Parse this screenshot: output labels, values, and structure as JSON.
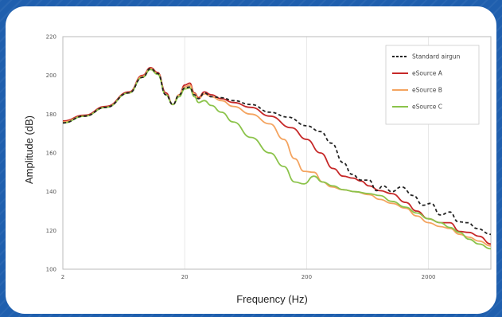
{
  "chart_data": {
    "type": "line",
    "title": "",
    "xlabel": "Frequency (Hz)",
    "ylabel": "Amplitude (dB)",
    "x_scale": "log",
    "xlim": [
      2,
      6500
    ],
    "ylim": [
      100,
      220
    ],
    "x_ticks": [
      2,
      20,
      200,
      2000
    ],
    "x_tick_labels": [
      "2",
      "20",
      "200",
      "2000"
    ],
    "y_ticks": [
      100,
      120,
      140,
      160,
      180,
      200,
      220
    ],
    "y_tick_labels": [
      "100",
      "120",
      "140",
      "160",
      "180",
      "200",
      "220"
    ],
    "grid": "vertical",
    "legend_position": "top-right",
    "series": [
      {
        "name": "Standard airgun",
        "color": "#222222",
        "dash": "4,3",
        "points": [
          [
            2,
            175.5
          ],
          [
            3,
            179
          ],
          [
            4.5,
            183.5
          ],
          [
            7,
            191
          ],
          [
            9,
            199
          ],
          [
            10.5,
            203.5
          ],
          [
            12,
            201
          ],
          [
            14,
            190
          ],
          [
            16,
            185
          ],
          [
            18,
            190
          ],
          [
            20,
            193.5
          ],
          [
            22,
            194
          ],
          [
            24,
            190
          ],
          [
            26,
            188
          ],
          [
            29,
            191
          ],
          [
            33,
            189
          ],
          [
            40,
            188.5
          ],
          [
            50,
            187
          ],
          [
            70,
            185
          ],
          [
            100,
            181
          ],
          [
            140,
            178.5
          ],
          [
            200,
            174
          ],
          [
            260,
            171
          ],
          [
            320,
            165
          ],
          [
            400,
            155
          ],
          [
            470,
            149
          ],
          [
            560,
            146
          ],
          [
            650,
            146
          ],
          [
            750,
            140.5
          ],
          [
            850,
            143
          ],
          [
            1000,
            140
          ],
          [
            1200,
            142.5
          ],
          [
            1500,
            138
          ],
          [
            1800,
            133
          ],
          [
            2100,
            134
          ],
          [
            2500,
            128
          ],
          [
            3000,
            129.5
          ],
          [
            3500,
            124.5
          ],
          [
            4200,
            124
          ],
          [
            5000,
            121
          ],
          [
            6500,
            118
          ]
        ]
      },
      {
        "name": "eSource A",
        "color": "#c62828",
        "dash": "",
        "points": [
          [
            2,
            176.5
          ],
          [
            3,
            179.5
          ],
          [
            4.5,
            184
          ],
          [
            7,
            191.5
          ],
          [
            9,
            200
          ],
          [
            10.5,
            204
          ],
          [
            12,
            201.5
          ],
          [
            14,
            191
          ],
          [
            16,
            185
          ],
          [
            18,
            190
          ],
          [
            20,
            195
          ],
          [
            22,
            196
          ],
          [
            24,
            191
          ],
          [
            26,
            188.5
          ],
          [
            29,
            191.5
          ],
          [
            33,
            190
          ],
          [
            40,
            188
          ],
          [
            50,
            186
          ],
          [
            70,
            183.5
          ],
          [
            100,
            179
          ],
          [
            150,
            173
          ],
          [
            200,
            167
          ],
          [
            260,
            160
          ],
          [
            330,
            152
          ],
          [
            400,
            148
          ],
          [
            480,
            147
          ],
          [
            560,
            145.5
          ],
          [
            650,
            143
          ],
          [
            800,
            140.5
          ],
          [
            1000,
            139
          ],
          [
            1300,
            134.5
          ],
          [
            1600,
            130
          ],
          [
            2000,
            126
          ],
          [
            2500,
            124
          ],
          [
            3000,
            124
          ],
          [
            3600,
            119.5
          ],
          [
            4300,
            119
          ],
          [
            5200,
            117
          ],
          [
            6500,
            113
          ]
        ]
      },
      {
        "name": "eSource B",
        "color": "#f4a460",
        "dash": "",
        "points": [
          [
            2,
            176
          ],
          [
            3,
            179
          ],
          [
            4.5,
            183.5
          ],
          [
            7,
            191
          ],
          [
            9,
            199.5
          ],
          [
            10.5,
            203.5
          ],
          [
            12,
            201
          ],
          [
            14,
            190
          ],
          [
            16,
            185
          ],
          [
            18,
            190
          ],
          [
            20,
            194
          ],
          [
            22,
            195
          ],
          [
            24,
            190.5
          ],
          [
            26,
            188
          ],
          [
            29,
            190.5
          ],
          [
            33,
            189
          ],
          [
            40,
            187
          ],
          [
            50,
            184
          ],
          [
            70,
            180
          ],
          [
            100,
            175
          ],
          [
            130,
            167
          ],
          [
            160,
            157
          ],
          [
            190,
            150.5
          ],
          [
            230,
            150
          ],
          [
            270,
            145
          ],
          [
            320,
            142.5
          ],
          [
            400,
            141
          ],
          [
            500,
            140
          ],
          [
            650,
            138.5
          ],
          [
            800,
            136
          ],
          [
            1000,
            134
          ],
          [
            1300,
            131.5
          ],
          [
            1600,
            127.5
          ],
          [
            2000,
            124
          ],
          [
            2500,
            122
          ],
          [
            3000,
            121
          ],
          [
            3600,
            118
          ],
          [
            4300,
            116.5
          ],
          [
            5200,
            114.5
          ],
          [
            6500,
            112
          ]
        ]
      },
      {
        "name": "eSource C",
        "color": "#8bc34a",
        "dash": "",
        "points": [
          [
            2,
            175.5
          ],
          [
            3,
            179
          ],
          [
            4.5,
            183.5
          ],
          [
            7,
            191
          ],
          [
            9,
            199
          ],
          [
            10.5,
            203
          ],
          [
            12,
            200.5
          ],
          [
            14,
            190
          ],
          [
            16,
            185
          ],
          [
            18,
            189
          ],
          [
            20,
            193
          ],
          [
            22,
            193.5
          ],
          [
            24,
            189
          ],
          [
            26,
            186
          ],
          [
            29,
            187
          ],
          [
            33,
            184.5
          ],
          [
            40,
            181
          ],
          [
            50,
            176
          ],
          [
            70,
            168
          ],
          [
            100,
            160
          ],
          [
            130,
            153
          ],
          [
            160,
            145
          ],
          [
            190,
            144
          ],
          [
            230,
            148
          ],
          [
            270,
            145
          ],
          [
            330,
            143
          ],
          [
            400,
            141
          ],
          [
            500,
            140
          ],
          [
            650,
            139
          ],
          [
            800,
            138
          ],
          [
            1000,
            135
          ],
          [
            1300,
            132
          ],
          [
            1600,
            129
          ],
          [
            2000,
            126
          ],
          [
            2500,
            124
          ],
          [
            3000,
            121.5
          ],
          [
            3600,
            119
          ],
          [
            4300,
            115.5
          ],
          [
            5200,
            113
          ],
          [
            6500,
            110.5
          ]
        ]
      }
    ]
  }
}
